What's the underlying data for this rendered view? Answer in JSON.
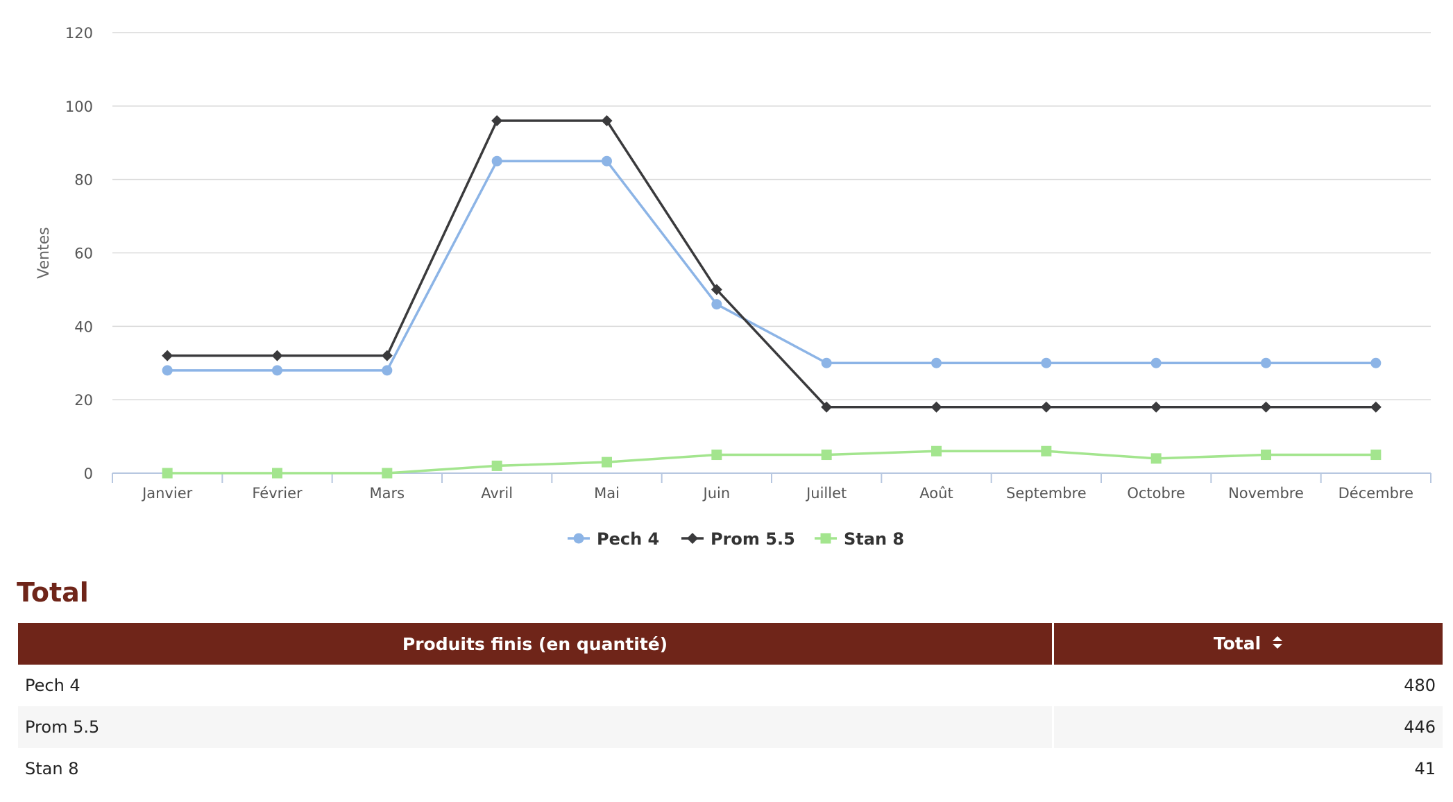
{
  "chart_data": {
    "type": "line",
    "categories": [
      "Janvier",
      "Février",
      "Mars",
      "Avril",
      "Mai",
      "Juin",
      "Juillet",
      "Août",
      "Septembre",
      "Octobre",
      "Novembre",
      "Décembre"
    ],
    "ylabel": "Ventes",
    "ylim": [
      0,
      120
    ],
    "yticks": [
      0,
      20,
      40,
      60,
      80,
      100,
      120
    ],
    "grid": true,
    "legend": "bottom-center",
    "series": [
      {
        "name": "Pech 4",
        "color": "#8cb4e6",
        "marker": "circle",
        "values": [
          28,
          28,
          28,
          85,
          85,
          46,
          30,
          30,
          30,
          30,
          30,
          30
        ]
      },
      {
        "name": "Prom 5.5",
        "color": "#3a3a3c",
        "marker": "diamond",
        "values": [
          32,
          32,
          32,
          96,
          96,
          50,
          18,
          18,
          18,
          18,
          18,
          18
        ]
      },
      {
        "name": "Stan 8",
        "color": "#a3e58e",
        "marker": "square",
        "values": [
          0,
          0,
          0,
          2,
          3,
          5,
          5,
          6,
          6,
          4,
          5,
          5
        ]
      }
    ]
  },
  "totals": {
    "title": "Total",
    "columns": [
      "Produits finis (en quantité)",
      "Total"
    ],
    "sort_icon": "sort-arrows-icon",
    "rows": [
      {
        "product": "Pech 4",
        "total": "480"
      },
      {
        "product": "Prom 5.5",
        "total": "446"
      },
      {
        "product": "Stan 8",
        "total": "41"
      }
    ]
  }
}
